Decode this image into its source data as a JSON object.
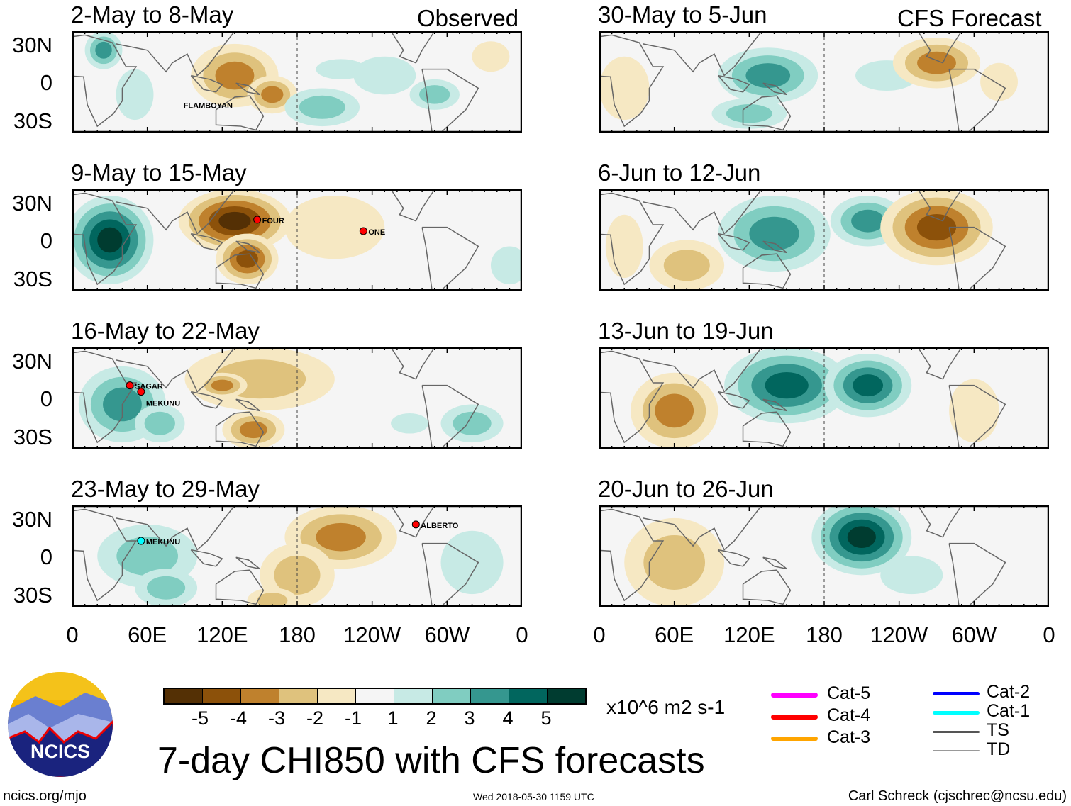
{
  "column_titles": {
    "left": "Observed",
    "right": "CFS Forecast"
  },
  "lat_labels": [
    "30N",
    "0",
    "30S"
  ],
  "lon_labels": [
    "0",
    "60E",
    "120E",
    "180",
    "120W",
    "60W",
    "0"
  ],
  "panels": [
    {
      "title": "2-May to 8-May",
      "col": 0,
      "row": 0,
      "blobs": [
        [
          25,
          25,
          15,
          15,
          3
        ],
        [
          130,
          5,
          35,
          25,
          -3
        ],
        [
          160,
          -10,
          20,
          15,
          -3
        ],
        [
          200,
          -20,
          30,
          15,
          2
        ],
        [
          250,
          5,
          25,
          15,
          1
        ],
        [
          290,
          -10,
          20,
          12,
          2
        ],
        [
          215,
          10,
          20,
          8,
          1
        ],
        [
          50,
          -10,
          15,
          20,
          1
        ],
        [
          335,
          20,
          15,
          12,
          -1
        ]
      ],
      "storms": [
        [
          "FLAMBOYAN",
          85,
          -18,
          "none"
        ]
      ]
    },
    {
      "title": "9-May to 15-May",
      "col": 0,
      "row": 1,
      "blobs": [
        [
          30,
          0,
          35,
          35,
          5
        ],
        [
          130,
          15,
          45,
          25,
          -5
        ],
        [
          140,
          -15,
          25,
          20,
          -4
        ],
        [
          210,
          10,
          40,
          25,
          -1
        ],
        [
          350,
          -20,
          15,
          15,
          1
        ]
      ],
      "storms": [
        [
          "FOUR",
          148,
          16,
          "#f00"
        ],
        [
          "ONE",
          233,
          7,
          "#f00"
        ]
      ]
    },
    {
      "title": "16-May to 22-May",
      "col": 0,
      "row": 2,
      "blobs": [
        [
          40,
          -5,
          35,
          30,
          3
        ],
        [
          70,
          -20,
          20,
          15,
          2
        ],
        [
          150,
          15,
          60,
          25,
          -2
        ],
        [
          145,
          -25,
          25,
          15,
          -3
        ],
        [
          120,
          10,
          20,
          10,
          -3
        ],
        [
          320,
          -20,
          25,
          15,
          2
        ],
        [
          270,
          -20,
          15,
          8,
          1
        ]
      ],
      "storms": [
        [
          "SAGAR",
          46,
          10,
          "#f00"
        ],
        [
          "MEKUNU",
          55,
          5,
          "#f00"
        ]
      ]
    },
    {
      "title": "23-May to 29-May",
      "col": 0,
      "row": 3,
      "blobs": [
        [
          60,
          0,
          40,
          25,
          2
        ],
        [
          75,
          -25,
          25,
          15,
          2
        ],
        [
          215,
          15,
          45,
          25,
          -3
        ],
        [
          180,
          -15,
          30,
          25,
          -2
        ],
        [
          160,
          -35,
          20,
          10,
          -2
        ],
        [
          320,
          -5,
          25,
          25,
          1
        ]
      ],
      "storms": [
        [
          "MEKUNU",
          55,
          12,
          "#0ff"
        ],
        [
          "ALBERTO",
          275,
          25,
          "#f00"
        ]
      ]
    },
    {
      "title": "30-May to 5-Jun",
      "col": 1,
      "row": 0,
      "blobs": [
        [
          135,
          5,
          40,
          22,
          3
        ],
        [
          120,
          -25,
          30,
          12,
          2
        ],
        [
          230,
          5,
          25,
          12,
          1
        ],
        [
          270,
          15,
          35,
          20,
          -3
        ],
        [
          20,
          -5,
          20,
          25,
          -1
        ],
        [
          320,
          0,
          15,
          15,
          -1
        ]
      ],
      "storms": []
    },
    {
      "title": "6-Jun to 12-Jun",
      "col": 1,
      "row": 1,
      "blobs": [
        [
          140,
          5,
          45,
          30,
          3
        ],
        [
          215,
          15,
          30,
          20,
          3
        ],
        [
          270,
          10,
          45,
          30,
          -4
        ],
        [
          70,
          -20,
          30,
          20,
          -2
        ],
        [
          20,
          -5,
          15,
          25,
          -1
        ]
      ],
      "storms": []
    },
    {
      "title": "13-Jun to 19-Jun",
      "col": 1,
      "row": 2,
      "blobs": [
        [
          150,
          10,
          50,
          30,
          4
        ],
        [
          215,
          10,
          35,
          25,
          4
        ],
        [
          60,
          -10,
          35,
          30,
          -3
        ],
        [
          300,
          -10,
          20,
          25,
          -1
        ]
      ],
      "storms": []
    },
    {
      "title": "20-Jun to 26-Jun",
      "col": 1,
      "row": 3,
      "blobs": [
        [
          210,
          15,
          40,
          30,
          5
        ],
        [
          60,
          -5,
          40,
          35,
          -2
        ],
        [
          250,
          -15,
          25,
          15,
          1
        ]
      ],
      "storms": []
    }
  ],
  "colorbar": {
    "colors": [
      "#543005",
      "#8c510a",
      "#bf812d",
      "#dfc27d",
      "#f6e8c3",
      "#f5f5f5",
      "#c7eae5",
      "#80cdc1",
      "#35978f",
      "#01665e",
      "#003c30"
    ],
    "labels": [
      "-5",
      "-4",
      "-3",
      "-2",
      "-1",
      "1",
      "2",
      "3",
      "4",
      "5"
    ],
    "units": "x10^6 m2 s-1"
  },
  "legend": [
    {
      "label": "Cat-5",
      "color": "#ff00ff"
    },
    {
      "label": "Cat-4",
      "color": "#ff0000"
    },
    {
      "label": "Cat-3",
      "color": "#ffa500"
    },
    {
      "label": "Cat-2",
      "color": "#0000ff"
    },
    {
      "label": "Cat-1",
      "color": "#00ffff"
    },
    {
      "label": "TS",
      "color": "#555555"
    },
    {
      "label": "TD",
      "color": "#999999"
    }
  ],
  "logo": {
    "text": "NCICS"
  },
  "main_title": "7-day CHI850 with CFS forecasts",
  "footer": {
    "left": "ncics.org/mjo",
    "center": "Wed 2018-05-30 1159 UTC",
    "right": "Carl Schreck (cjschrec@ncsu.edu)"
  }
}
